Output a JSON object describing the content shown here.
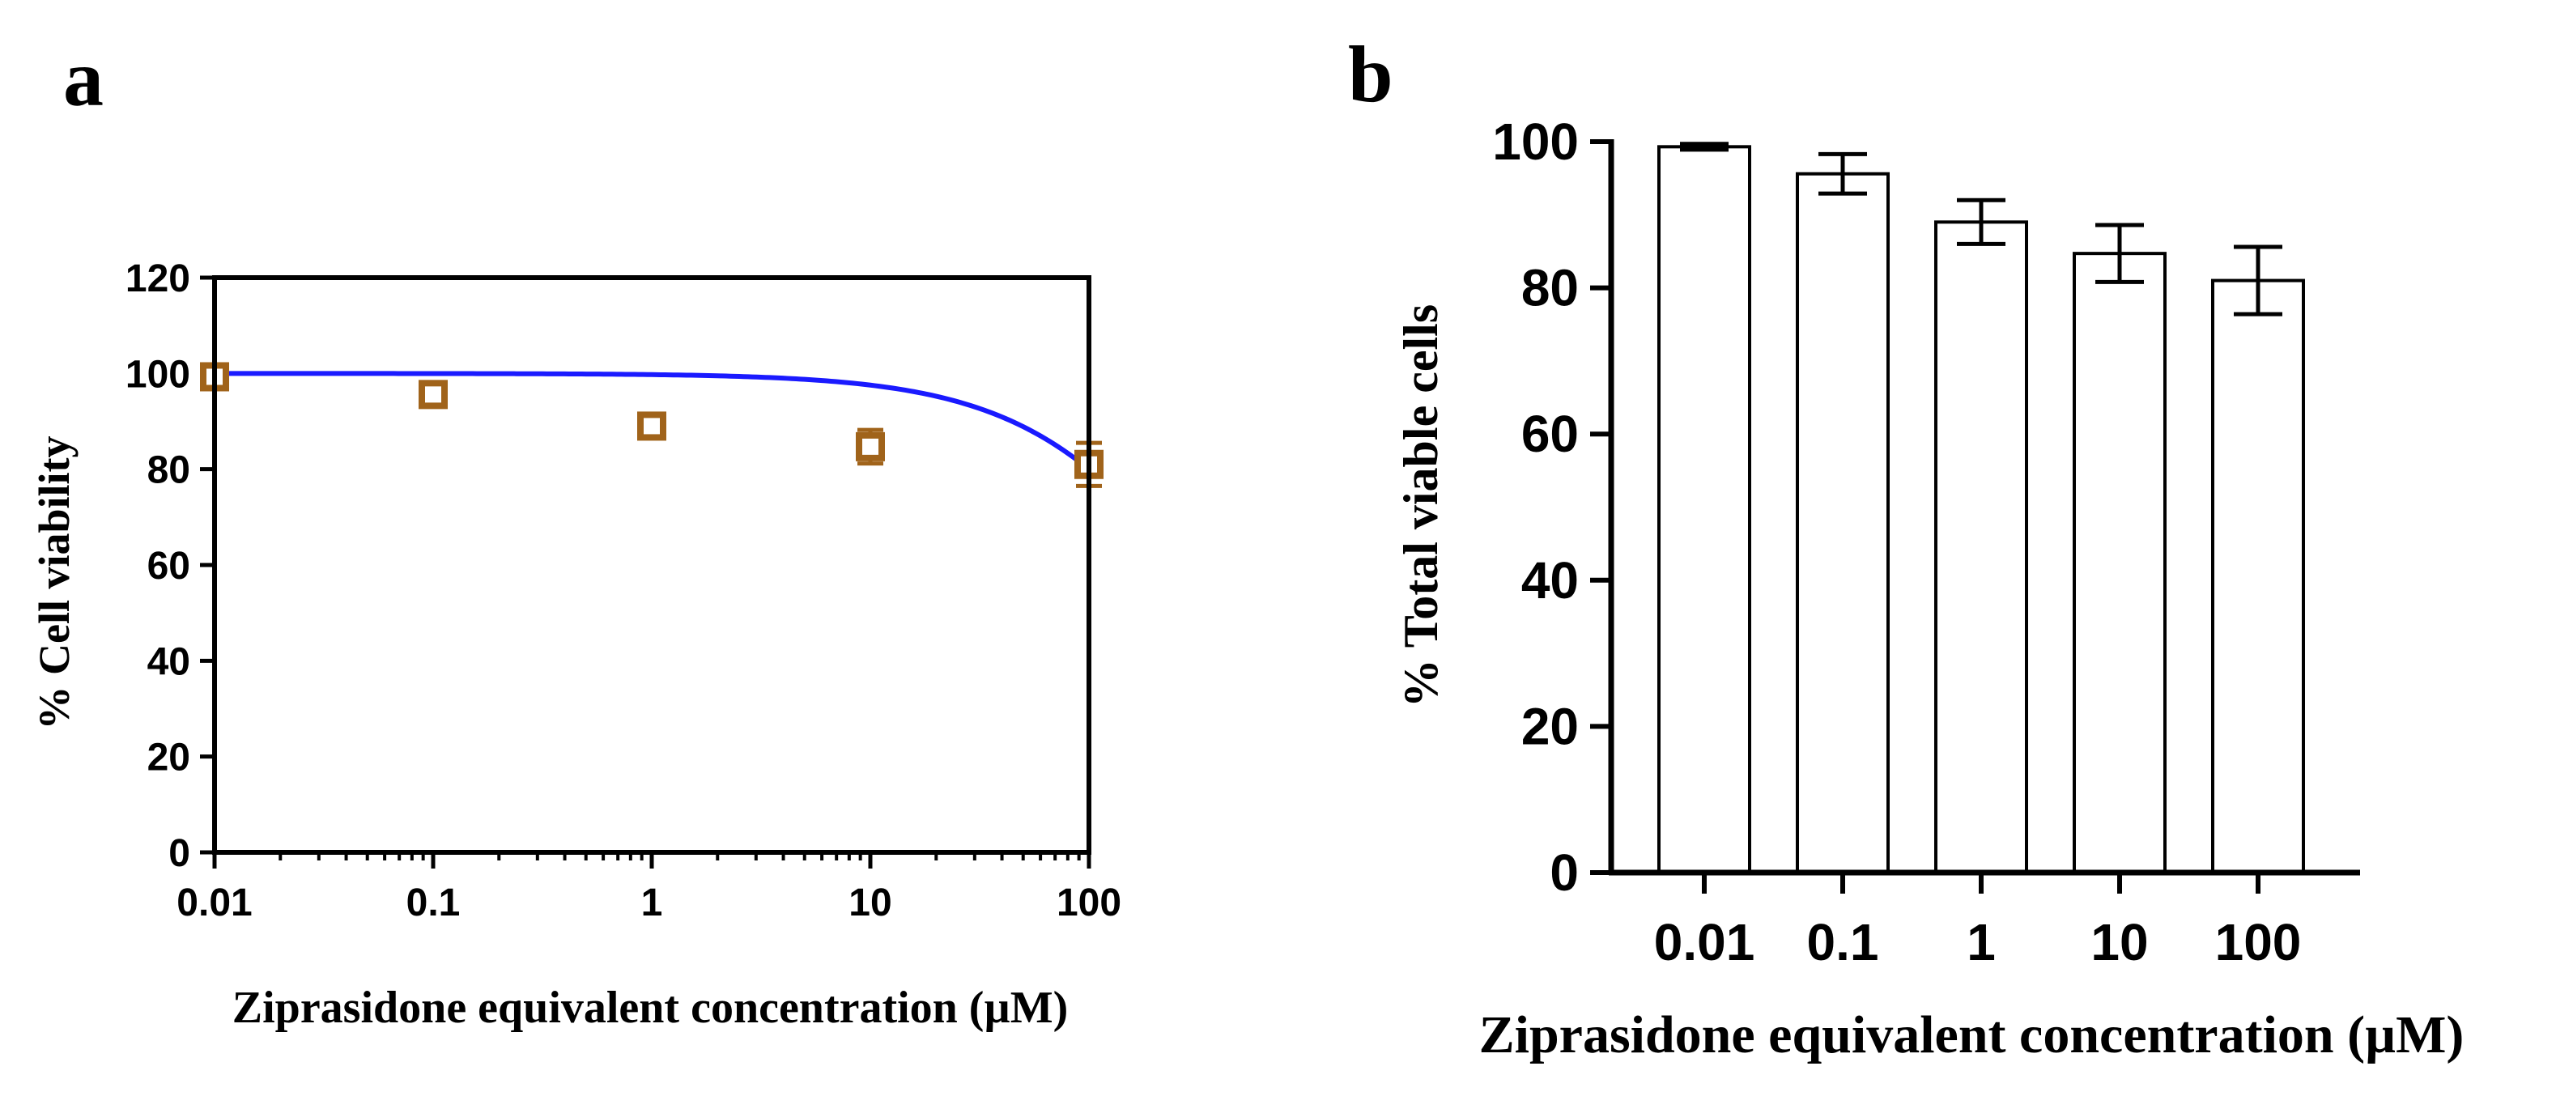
{
  "figure": {
    "panel_a_label": "a",
    "panel_b_label": "b"
  },
  "colors": {
    "fit_line": "#1a1aff",
    "marker": "#a0631a",
    "axis": "#000000",
    "bar_fill": "#ffffff"
  },
  "chart_data": [
    {
      "panel": "a",
      "type": "scatter",
      "title": "",
      "xlabel": "Ziprasidone equivalent concentration (µM)",
      "ylabel": "% Cell viability",
      "x_scale": "log",
      "xlim": [
        0.01,
        100
      ],
      "ylim": [
        0,
        120
      ],
      "x_ticks": [
        0.01,
        0.1,
        1,
        10,
        100
      ],
      "x_tick_labels": [
        "0.01",
        "0.1",
        "1",
        "10",
        "100"
      ],
      "y_ticks": [
        0,
        20,
        40,
        60,
        80,
        100,
        120
      ],
      "y_tick_labels": [
        "0",
        "20",
        "40",
        "60",
        "80",
        "100",
        "120"
      ],
      "grid": false,
      "points": [
        {
          "x": 0.01,
          "y": 99.3,
          "err": 0.5
        },
        {
          "x": 0.1,
          "y": 95.6,
          "err": 1.5
        },
        {
          "x": 1,
          "y": 89.0,
          "err": 2.5
        },
        {
          "x": 10,
          "y": 84.7,
          "err": 3.5
        },
        {
          "x": 100,
          "y": 81.0,
          "err": 4.5
        }
      ],
      "fit": {
        "top": 100,
        "bottom": 0,
        "ic50": 400,
        "hill": 1
      }
    },
    {
      "panel": "b",
      "type": "bar",
      "title": "",
      "xlabel": "Ziprasidone equivalent concentration (µM)",
      "ylabel": "% Total viable cells",
      "categories": [
        "0.01",
        "0.1",
        "1",
        "10",
        "100"
      ],
      "values": [
        99.3,
        95.6,
        89.0,
        84.7,
        81.0
      ],
      "errors": [
        0.4,
        2.7,
        3.0,
        3.9,
        4.6
      ],
      "ylim": [
        0,
        100
      ],
      "y_ticks": [
        0,
        20,
        40,
        60,
        80,
        100
      ],
      "y_tick_labels": [
        "0",
        "20",
        "40",
        "60",
        "80",
        "100"
      ],
      "grid": false
    }
  ]
}
